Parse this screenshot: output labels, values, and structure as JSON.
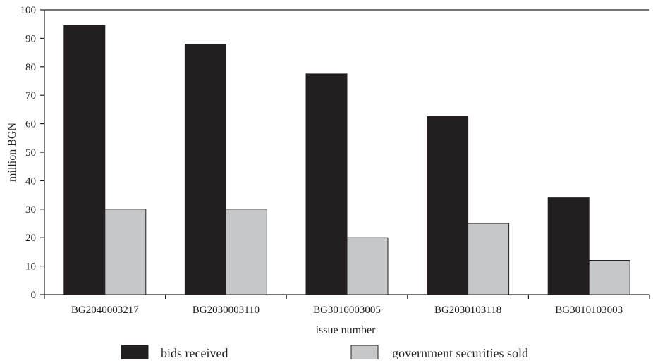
{
  "chart_data": {
    "type": "bar",
    "title": "",
    "xlabel": "issue number",
    "ylabel": "million BGN",
    "ylim": [
      0,
      100
    ],
    "yticks": [
      0,
      10,
      20,
      30,
      40,
      50,
      60,
      70,
      80,
      90,
      100
    ],
    "grid": false,
    "legend_position": "bottom",
    "categories": [
      "BG2040003217",
      "BG2030003110",
      "BG3010003005",
      "BG2030103118",
      "BG3010103003"
    ],
    "series": [
      {
        "name": "bids received",
        "color": "#231f20",
        "values": [
          94.5,
          88,
          77.5,
          62.5,
          34
        ]
      },
      {
        "name": "government securities sold",
        "color": "#c6c7c9",
        "values": [
          30,
          30,
          20,
          25,
          12
        ]
      }
    ]
  }
}
